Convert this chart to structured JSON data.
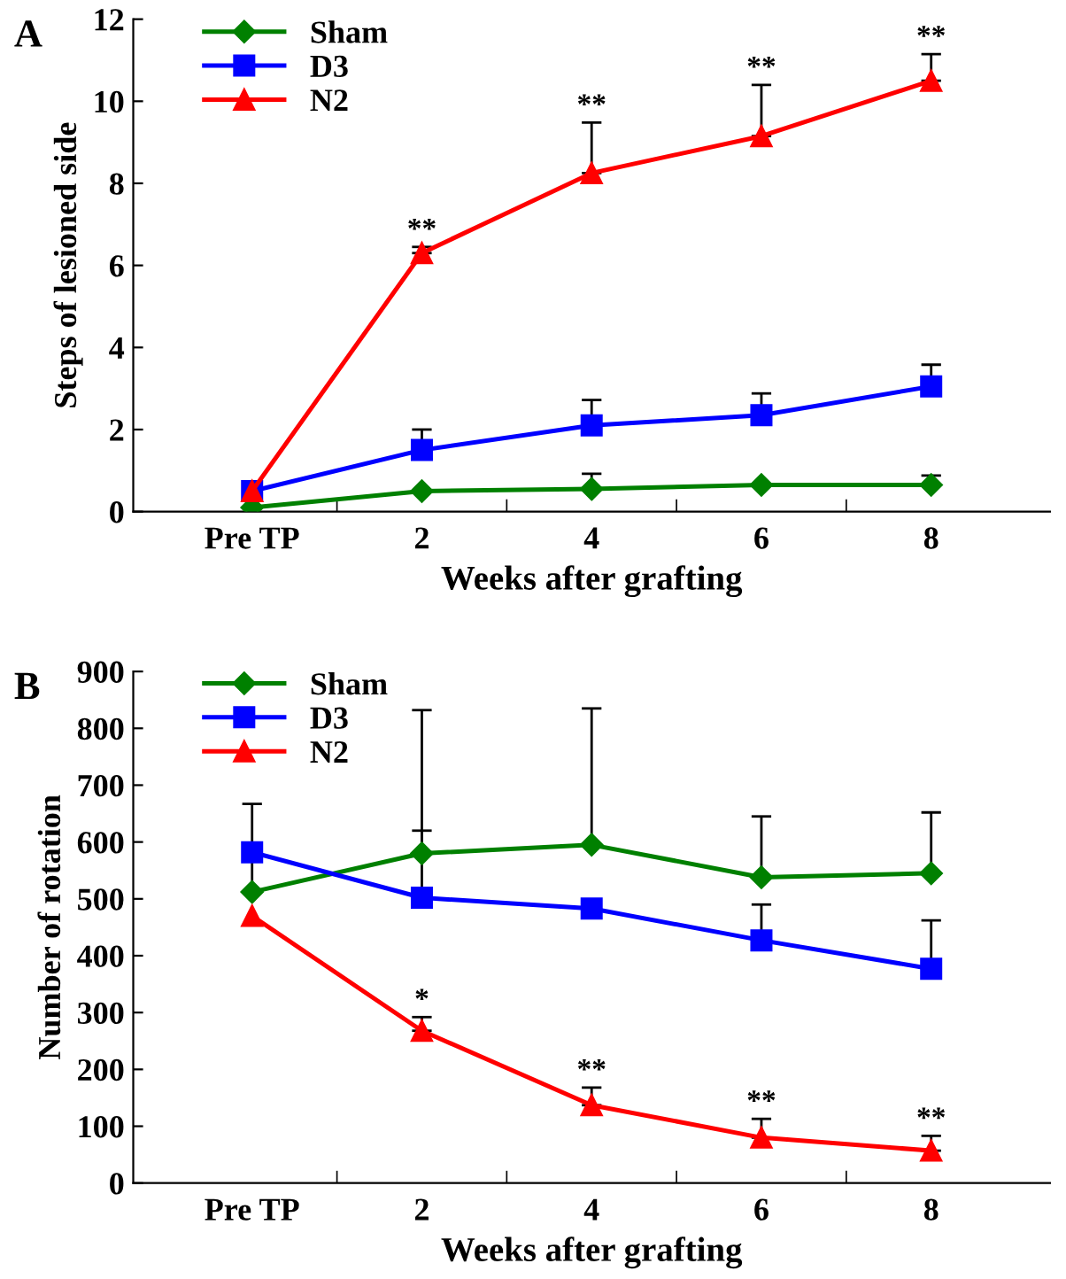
{
  "chart_data": [
    {
      "type": "line",
      "xlabel": "Weeks after grafting",
      "ylabel": "Steps of lesioned side",
      "categories": [
        "Pre TP",
        "2",
        "4",
        "6",
        "8"
      ],
      "ylim": [
        0,
        12
      ],
      "yticks": [
        0,
        2,
        4,
        6,
        8,
        10,
        12
      ],
      "legend": "top left",
      "grid": false,
      "line_style": "solid",
      "series": [
        {
          "name": "Sham",
          "color": "#008000",
          "marker": "diamond",
          "values": [
            0.1,
            0.5,
            0.55,
            0.65,
            0.65
          ],
          "errors": [
            null,
            null,
            [
              0.55,
              0.92
            ],
            null,
            [
              0.65,
              0.88
            ]
          ]
        },
        {
          "name": "D3",
          "color": "#0000ff",
          "marker": "square",
          "values": [
            0.5,
            1.5,
            2.1,
            2.35,
            3.05
          ],
          "errors": [
            null,
            [
              1.5,
              2.0
            ],
            [
              2.1,
              2.72
            ],
            [
              2.35,
              2.88
            ],
            [
              3.05,
              3.58
            ]
          ]
        },
        {
          "name": "N2",
          "color": "#ff0000",
          "marker": "triangle",
          "values": [
            0.5,
            6.3,
            8.25,
            9.15,
            10.5
          ],
          "errors": [
            null,
            [
              6.3,
              6.45
            ],
            [
              8.25,
              9.48
            ],
            [
              9.15,
              10.4
            ],
            [
              10.5,
              11.15
            ]
          ]
        }
      ],
      "annotations": [
        "A",
        {
          "text": "**",
          "x": "2",
          "y": 6.45
        },
        {
          "text": "**",
          "x": "4",
          "y": 9.48
        },
        {
          "text": "**",
          "x": "6",
          "y": 10.4
        },
        {
          "text": "**",
          "x": "8",
          "y": 11.15
        }
      ]
    },
    {
      "type": "line",
      "xlabel": "Weeks after grafting",
      "ylabel": "Number of rotation",
      "categories": [
        "Pre TP",
        "2",
        "4",
        "6",
        "8"
      ],
      "ylim": [
        0,
        900
      ],
      "yticks": [
        0,
        100,
        200,
        300,
        400,
        500,
        600,
        700,
        800,
        900
      ],
      "legend": "top left",
      "grid": false,
      "line_style": "solid",
      "series": [
        {
          "name": "Sham",
          "color": "#008000",
          "marker": "diamond",
          "values": [
            512,
            580,
            595,
            538,
            545
          ],
          "errors": [
            [
              512,
              598
            ],
            [
              580,
              832
            ],
            [
              595,
              835
            ],
            [
              538,
              645
            ],
            [
              545,
              652
            ]
          ]
        },
        {
          "name": "D3",
          "color": "#0000ff",
          "marker": "square",
          "values": [
            582,
            502,
            483,
            427,
            377
          ],
          "errors": [
            [
              582,
              667
            ],
            [
              502,
              620
            ],
            null,
            [
              427,
              490
            ],
            [
              377,
              462
            ]
          ]
        },
        {
          "name": "N2",
          "color": "#ff0000",
          "marker": "triangle",
          "values": [
            470,
            268,
            137,
            80,
            57
          ],
          "errors": [
            null,
            [
              268,
              292
            ],
            [
              137,
              168
            ],
            [
              80,
              113
            ],
            [
              57,
              83
            ]
          ]
        }
      ],
      "annotations": [
        "B",
        {
          "text": "*",
          "x": "2",
          "y": 292
        },
        {
          "text": "**",
          "x": "4",
          "y": 168
        },
        {
          "text": "**",
          "x": "6",
          "y": 113
        },
        {
          "text": "**",
          "x": "8",
          "y": 83
        }
      ]
    }
  ]
}
